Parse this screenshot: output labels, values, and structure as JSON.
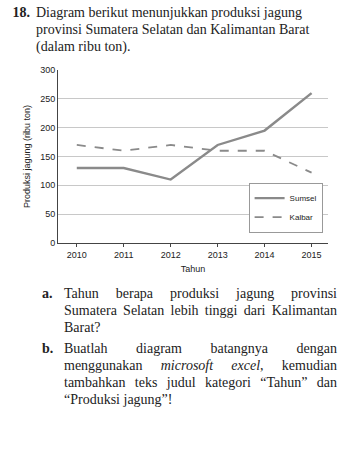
{
  "header": {
    "number": "18.",
    "text": "Diagram berikut menunjukkan produksi jagung provinsi Sumatera Selatan dan Kalimantan Barat (dalam ribu ton)."
  },
  "chart_data": {
    "type": "line",
    "x": [
      2010,
      2011,
      2012,
      2013,
      2014,
      2015
    ],
    "series": [
      {
        "name": "Sumsel",
        "color": "#8a8a8a",
        "line_style": "solid",
        "values": [
          130,
          130,
          110,
          170,
          195,
          260
        ]
      },
      {
        "name": "Kalbar",
        "color": "#8a8a8a",
        "line_style": "dash",
        "values": [
          170,
          160,
          170,
          160,
          160,
          122
        ]
      }
    ],
    "x_label": "Tahun",
    "y_label": "Produksi jagung (ribu ton)",
    "xlim": [
      2009.6,
      2015.35
    ],
    "xticks": [
      2010,
      2011,
      2012,
      2013,
      2014,
      2015
    ],
    "ylim": [
      0,
      300
    ],
    "yticks": [
      0,
      50,
      100,
      150,
      200,
      250,
      300
    ],
    "grid": true,
    "legend": "lower right"
  },
  "questions": [
    {
      "label": "a.",
      "parts": [
        {
          "text": "Tahun berapa produksi jagung provinsi Sumatera Selatan lebih tinggi dari Kalimantan Barat?"
        }
      ]
    },
    {
      "label": "b.",
      "parts": [
        {
          "text": "Buatlah diagram batangnya dengan menggunakan "
        },
        {
          "text": "microsoft excel",
          "italic": true
        },
        {
          "text": ", kemudian tambahkan teks judul kategori “Tahun” dan “Produksi jagung”!"
        }
      ]
    }
  ]
}
